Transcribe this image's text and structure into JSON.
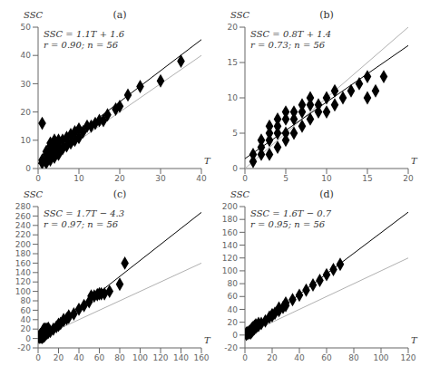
{
  "chart_data": [
    {
      "type": "scatter",
      "title": "(a)",
      "x_label": "T",
      "y_label": "SSC",
      "annotations": [
        "SSC = 1.1T + 1.6",
        "r = 0.90; n = 56"
      ],
      "xlim": [
        0,
        40
      ],
      "ylim": [
        0,
        50
      ],
      "xticks": [
        0,
        10,
        20,
        30,
        40
      ],
      "yticks": [
        0,
        10,
        20,
        30,
        40,
        50
      ],
      "series": [
        {
          "type": "line",
          "color": "#b0b0b0",
          "x": [
            0,
            40
          ],
          "values": [
            0,
            40
          ]
        },
        {
          "type": "line",
          "color": "#000000",
          "x": [
            0,
            40
          ],
          "values": [
            1.6,
            45.6
          ]
        },
        {
          "type": "scatter",
          "color": "#000000",
          "marker": "diamond",
          "x": [
            1,
            1,
            1,
            2,
            2,
            2,
            2,
            3,
            3,
            3,
            3,
            3,
            4,
            4,
            4,
            4,
            4,
            4,
            5,
            5,
            5,
            5,
            5,
            6,
            6,
            7,
            7,
            8,
            8,
            9,
            9,
            10,
            10,
            11,
            12,
            13,
            14,
            15,
            16,
            17,
            19,
            20,
            22,
            25,
            30,
            35
          ],
          "values": [
            2,
            3,
            16,
            2,
            3,
            5,
            6,
            3,
            4,
            6,
            8,
            9,
            4,
            5,
            7,
            8,
            9,
            10,
            5,
            6,
            7,
            8,
            10,
            7,
            10,
            8,
            11,
            9,
            12,
            10,
            13,
            11,
            14,
            13,
            15,
            15,
            16,
            17,
            17,
            19,
            21,
            22,
            26,
            29,
            31,
            38
          ]
        }
      ]
    },
    {
      "type": "scatter",
      "title": "(b)",
      "x_label": "T",
      "y_label": "SSC",
      "annotations": [
        "SSC = 0.8T + 1.4",
        "r = 0.73; n = 56"
      ],
      "xlim": [
        0,
        20
      ],
      "ylim": [
        0,
        20
      ],
      "xticks": [
        0,
        5,
        10,
        15,
        20
      ],
      "yticks": [
        0,
        5,
        10,
        15,
        20
      ],
      "series": [
        {
          "type": "line",
          "color": "#b0b0b0",
          "x": [
            0,
            20
          ],
          "values": [
            0,
            20
          ]
        },
        {
          "type": "line",
          "color": "#000000",
          "x": [
            0,
            20
          ],
          "values": [
            1.4,
            17.4
          ]
        },
        {
          "type": "scatter",
          "color": "#000000",
          "marker": "diamond",
          "x": [
            1,
            1,
            2,
            2,
            2,
            3,
            3,
            3,
            3,
            4,
            4,
            4,
            4,
            5,
            5,
            5,
            5,
            6,
            6,
            6,
            7,
            7,
            7,
            8,
            8,
            8,
            9,
            9,
            10,
            10,
            11,
            11,
            12,
            13,
            14,
            15,
            15,
            16,
            17
          ],
          "values": [
            1,
            2,
            2,
            3,
            4,
            2,
            4,
            5,
            6,
            3,
            5,
            6,
            7,
            4,
            5,
            7,
            8,
            5,
            7,
            8,
            6,
            8,
            9,
            7,
            9,
            10,
            8,
            9,
            8,
            10,
            9,
            11,
            10,
            11,
            12,
            10,
            13,
            11,
            13
          ]
        }
      ]
    },
    {
      "type": "scatter",
      "title": "(c)",
      "x_label": "T",
      "y_label": "SSC",
      "annotations": [
        "SSC = 1.7T − 4.3",
        "r = 0.97; n = 56"
      ],
      "xlim": [
        0,
        160
      ],
      "ylim": [
        -20,
        280
      ],
      "xticks": [
        0,
        20,
        40,
        60,
        80,
        100,
        120,
        140,
        160
      ],
      "yticks": [
        -20,
        0,
        20,
        40,
        60,
        80,
        100,
        120,
        140,
        160,
        180,
        200,
        220,
        240,
        260,
        280
      ],
      "series": [
        {
          "type": "line",
          "color": "#b0b0b0",
          "x": [
            0,
            160
          ],
          "values": [
            0,
            160
          ]
        },
        {
          "type": "line",
          "color": "#000000",
          "x": [
            0,
            160
          ],
          "values": [
            -4.3,
            267.7
          ]
        },
        {
          "type": "scatter",
          "color": "#000000",
          "marker": "diamond",
          "x": [
            1,
            1,
            2,
            2,
            3,
            3,
            3,
            4,
            4,
            5,
            5,
            5,
            5,
            6,
            6,
            7,
            7,
            7,
            8,
            8,
            9,
            9,
            10,
            10,
            12,
            15,
            18,
            20,
            20,
            22,
            25,
            25,
            28,
            30,
            30,
            35,
            40,
            45,
            50,
            52,
            55,
            58,
            60,
            62,
            65,
            70,
            80,
            85
          ],
          "values": [
            2,
            5,
            3,
            8,
            3,
            5,
            10,
            2,
            8,
            4,
            6,
            9,
            18,
            5,
            20,
            8,
            12,
            20,
            10,
            20,
            12,
            20,
            13,
            22,
            15,
            20,
            25,
            28,
            30,
            32,
            38,
            40,
            42,
            45,
            48,
            52,
            62,
            70,
            78,
            90,
            90,
            93,
            95,
            95,
            95,
            100,
            115,
            160
          ]
        }
      ]
    },
    {
      "type": "scatter",
      "title": "(d)",
      "x_label": "T",
      "y_label": "SSC",
      "annotations": [
        "SSC = 1.6T − 0.7",
        "r = 0.95; n = 56"
      ],
      "xlim": [
        0,
        120
      ],
      "ylim": [
        -20,
        200
      ],
      "xticks": [
        0,
        20,
        40,
        60,
        80,
        100,
        120
      ],
      "yticks": [
        -20,
        0,
        20,
        40,
        60,
        80,
        100,
        120,
        140,
        160,
        180,
        200
      ],
      "series": [
        {
          "type": "line",
          "color": "#b0b0b0",
          "x": [
            0,
            120
          ],
          "values": [
            0,
            120
          ]
        },
        {
          "type": "line",
          "color": "#000000",
          "x": [
            0,
            120
          ],
          "values": [
            -0.7,
            191.3
          ]
        },
        {
          "type": "scatter",
          "color": "#000000",
          "marker": "diamond",
          "x": [
            1,
            1,
            2,
            2,
            3,
            3,
            4,
            4,
            5,
            5,
            5,
            6,
            6,
            7,
            7,
            8,
            8,
            9,
            10,
            10,
            12,
            15,
            18,
            20,
            20,
            22,
            25,
            25,
            28,
            30,
            30,
            35,
            40,
            45,
            50,
            55,
            60,
            65,
            70
          ],
          "values": [
            1,
            3,
            2,
            4,
            4,
            5,
            3,
            7,
            5,
            8,
            10,
            8,
            12,
            10,
            14,
            12,
            16,
            14,
            15,
            18,
            18,
            22,
            28,
            30,
            32,
            34,
            38,
            42,
            43,
            46,
            50,
            55,
            62,
            70,
            78,
            85,
            94,
            102,
            110
          ]
        }
      ]
    }
  ]
}
